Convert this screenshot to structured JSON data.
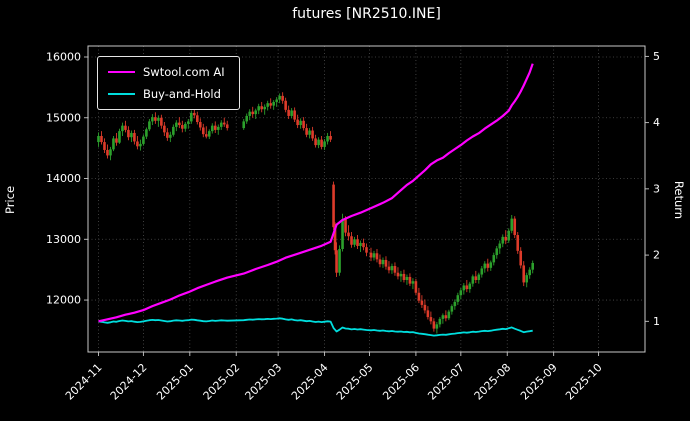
{
  "chart_data": {
    "type": "candlestick",
    "title": "futures [NR2510.INE]",
    "x_axis": {
      "tick_labels": [
        "2024-11",
        "2024-12",
        "2025-01",
        "2025-02",
        "2025-03",
        "2025-04",
        "2025-05",
        "2025-06",
        "2025-07",
        "2025-08",
        "2025-09",
        "2025-10"
      ],
      "tick_days": [
        7,
        37,
        68,
        99,
        127,
        158,
        188,
        219,
        249,
        280,
        311,
        341
      ],
      "xlim": [
        0,
        372
      ]
    },
    "price_axis": {
      "label": "Price",
      "ticks": [
        12000,
        13000,
        14000,
        15000,
        16000
      ],
      "ylim": [
        11145,
        16181
      ]
    },
    "return_axis": {
      "label": "Return",
      "ticks": [
        1,
        2,
        3,
        4,
        5
      ],
      "price_intercept": 10560,
      "price_per_unit": 1090
    },
    "grid": "dotted",
    "legend_position": "upper-left",
    "colors": {
      "background": "#000000",
      "text": "#ffffff",
      "grid": "#4d4d4d",
      "spine": "#c8c8c8",
      "up": "#2ca02c",
      "down": "#dd3b2a",
      "ai_line": "#ff00ff",
      "bh_line": "#00dede"
    },
    "series": [
      {
        "name": "Swtool.com AI",
        "axis": "return",
        "points": [
          [
            7,
            1.0
          ],
          [
            13,
            1.03
          ],
          [
            19,
            1.06
          ],
          [
            25,
            1.1
          ],
          [
            31,
            1.13
          ],
          [
            37,
            1.17
          ],
          [
            43,
            1.23
          ],
          [
            49,
            1.28
          ],
          [
            55,
            1.33
          ],
          [
            61,
            1.39
          ],
          [
            67,
            1.44
          ],
          [
            73,
            1.5
          ],
          [
            79,
            1.55
          ],
          [
            85,
            1.6
          ],
          [
            93,
            1.66
          ],
          [
            104,
            1.72
          ],
          [
            112,
            1.79
          ],
          [
            120,
            1.85
          ],
          [
            126,
            1.9
          ],
          [
            132,
            1.96
          ],
          [
            140,
            2.02
          ],
          [
            148,
            2.08
          ],
          [
            156,
            2.14
          ],
          [
            162,
            2.2
          ],
          [
            164,
            2.33
          ],
          [
            166,
            2.46
          ],
          [
            170,
            2.53
          ],
          [
            176,
            2.59
          ],
          [
            182,
            2.64
          ],
          [
            189,
            2.71
          ],
          [
            197,
            2.79
          ],
          [
            203,
            2.86
          ],
          [
            209,
            2.98
          ],
          [
            213,
            3.06
          ],
          [
            217,
            3.12
          ],
          [
            221,
            3.2
          ],
          [
            225,
            3.28
          ],
          [
            229,
            3.37
          ],
          [
            233,
            3.43
          ],
          [
            237,
            3.47
          ],
          [
            241,
            3.54
          ],
          [
            245,
            3.6
          ],
          [
            249,
            3.66
          ],
          [
            253,
            3.73
          ],
          [
            257,
            3.79
          ],
          [
            261,
            3.84
          ],
          [
            265,
            3.91
          ],
          [
            269,
            3.97
          ],
          [
            273,
            4.03
          ],
          [
            277,
            4.1
          ],
          [
            281,
            4.18
          ],
          [
            283,
            4.26
          ],
          [
            285,
            4.32
          ],
          [
            287,
            4.39
          ],
          [
            289,
            4.47
          ],
          [
            291,
            4.56
          ],
          [
            293,
            4.66
          ],
          [
            295,
            4.76
          ],
          [
            297,
            4.89
          ]
        ]
      },
      {
        "name": "Buy-and-Hold",
        "axis": "return",
        "derived": "close / first_close of candles"
      }
    ],
    "candles": [
      [
        7,
        14600,
        14760,
        14520,
        14700
      ],
      [
        9,
        14700,
        14780,
        14560,
        14600
      ],
      [
        11,
        14600,
        14660,
        14420,
        14470
      ],
      [
        13,
        14470,
        14560,
        14330,
        14380
      ],
      [
        15,
        14380,
        14520,
        14300,
        14480
      ],
      [
        17,
        14480,
        14700,
        14450,
        14660
      ],
      [
        19,
        14660,
        14750,
        14540,
        14590
      ],
      [
        21,
        14590,
        14820,
        14570,
        14780
      ],
      [
        23,
        14780,
        14920,
        14700,
        14870
      ],
      [
        25,
        14870,
        14950,
        14760,
        14800
      ],
      [
        27,
        14800,
        14860,
        14630,
        14680
      ],
      [
        29,
        14680,
        14790,
        14600,
        14750
      ],
      [
        31,
        14750,
        14800,
        14560,
        14610
      ],
      [
        33,
        14610,
        14700,
        14480,
        14530
      ],
      [
        35,
        14530,
        14640,
        14460,
        14570
      ],
      [
        37,
        14570,
        14720,
        14540,
        14690
      ],
      [
        39,
        14690,
        14840,
        14650,
        14810
      ],
      [
        41,
        14810,
        14980,
        14780,
        14940
      ],
      [
        43,
        14940,
        15060,
        14880,
        15010
      ],
      [
        45,
        15010,
        15090,
        14900,
        14950
      ],
      [
        47,
        14950,
        15040,
        14850,
        15000
      ],
      [
        49,
        15000,
        15050,
        14820,
        14870
      ],
      [
        51,
        14870,
        14930,
        14700,
        14760
      ],
      [
        53,
        14760,
        14830,
        14620,
        14670
      ],
      [
        55,
        14670,
        14770,
        14600,
        14720
      ],
      [
        57,
        14720,
        14890,
        14690,
        14850
      ],
      [
        59,
        14850,
        14960,
        14780,
        14920
      ],
      [
        61,
        14920,
        15010,
        14830,
        14880
      ],
      [
        63,
        14880,
        14950,
        14760,
        14820
      ],
      [
        65,
        14820,
        14930,
        14770,
        14900
      ],
      [
        67,
        14900,
        14980,
        14820,
        14940
      ],
      [
        69,
        14940,
        15120,
        14900,
        15080
      ],
      [
        71,
        15080,
        15160,
        14990,
        15040
      ],
      [
        73,
        15040,
        15100,
        14890,
        14930
      ],
      [
        75,
        14930,
        14990,
        14790,
        14840
      ],
      [
        77,
        14840,
        14900,
        14680,
        14730
      ],
      [
        79,
        14730,
        14860,
        14660,
        14690
      ],
      [
        81,
        14690,
        14810,
        14650,
        14780
      ],
      [
        83,
        14780,
        14910,
        14740,
        14870
      ],
      [
        85,
        14870,
        14940,
        14750,
        14800
      ],
      [
        87,
        14800,
        14890,
        14720,
        14850
      ],
      [
        89,
        14850,
        14960,
        14800,
        14920
      ],
      [
        91,
        14920,
        15000,
        14850,
        14890
      ],
      [
        93,
        14890,
        14950,
        14790,
        14830
      ],
      [
        104,
        14830,
        14980,
        14800,
        14940
      ],
      [
        106,
        14940,
        15070,
        14900,
        15030
      ],
      [
        108,
        15030,
        15140,
        14960,
        15100
      ],
      [
        110,
        15100,
        15180,
        15000,
        15060
      ],
      [
        112,
        15060,
        15150,
        14980,
        15120
      ],
      [
        114,
        15120,
        15230,
        15060,
        15190
      ],
      [
        116,
        15190,
        15260,
        15090,
        15140
      ],
      [
        118,
        15140,
        15220,
        15050,
        15180
      ],
      [
        120,
        15180,
        15280,
        15120,
        15240
      ],
      [
        122,
        15240,
        15320,
        15150,
        15200
      ],
      [
        124,
        15200,
        15290,
        15130,
        15260
      ],
      [
        126,
        15260,
        15340,
        15180,
        15300
      ],
      [
        128,
        15300,
        15400,
        15240,
        15360
      ],
      [
        130,
        15360,
        15420,
        15230,
        15280
      ],
      [
        132,
        15280,
        15330,
        15090,
        15130
      ],
      [
        134,
        15130,
        15200,
        14980,
        15030
      ],
      [
        136,
        15030,
        15160,
        14990,
        15120
      ],
      [
        138,
        15120,
        15170,
        14930,
        14970
      ],
      [
        140,
        14970,
        15050,
        14830,
        14880
      ],
      [
        142,
        14880,
        14990,
        14820,
        14950
      ],
      [
        144,
        14950,
        15010,
        14790,
        14830
      ],
      [
        146,
        14830,
        14900,
        14680,
        14720
      ],
      [
        148,
        14720,
        14830,
        14660,
        14790
      ],
      [
        150,
        14790,
        14850,
        14620,
        14660
      ],
      [
        152,
        14660,
        14720,
        14510,
        14550
      ],
      [
        154,
        14550,
        14680,
        14500,
        14640
      ],
      [
        156,
        14640,
        14700,
        14480,
        14520
      ],
      [
        158,
        14520,
        14650,
        14470,
        14610
      ],
      [
        160,
        14610,
        14750,
        14560,
        14700
      ],
      [
        162,
        14700,
        14780,
        14600,
        14640
      ],
      [
        164,
        13900,
        13950,
        13150,
        13200
      ],
      [
        165,
        13200,
        13280,
        12750,
        12820
      ],
      [
        166,
        12820,
        12950,
        12380,
        12450
      ],
      [
        168,
        12450,
        12900,
        12400,
        12840
      ],
      [
        170,
        12840,
        13420,
        12800,
        13330
      ],
      [
        172,
        13330,
        13380,
        13050,
        13110
      ],
      [
        174,
        13110,
        13230,
        12980,
        13050
      ],
      [
        176,
        13050,
        13120,
        12860,
        12910
      ],
      [
        178,
        12910,
        13040,
        12870,
        13000
      ],
      [
        180,
        13000,
        13070,
        12840,
        12890
      ],
      [
        182,
        12890,
        12980,
        12790,
        12940
      ],
      [
        184,
        12940,
        13010,
        12820,
        12870
      ],
      [
        186,
        12870,
        12930,
        12720,
        12780
      ],
      [
        189,
        12780,
        12860,
        12640,
        12700
      ],
      [
        191,
        12700,
        12810,
        12650,
        12770
      ],
      [
        193,
        12770,
        12840,
        12620,
        12670
      ],
      [
        195,
        12670,
        12750,
        12540,
        12590
      ],
      [
        197,
        12590,
        12700,
        12530,
        12660
      ],
      [
        199,
        12660,
        12720,
        12500,
        12550
      ],
      [
        201,
        12550,
        12640,
        12440,
        12490
      ],
      [
        203,
        12490,
        12600,
        12430,
        12560
      ],
      [
        205,
        12560,
        12620,
        12400,
        12450
      ],
      [
        207,
        12450,
        12540,
        12340,
        12390
      ],
      [
        209,
        12390,
        12480,
        12300,
        12430
      ],
      [
        211,
        12430,
        12500,
        12290,
        12330
      ],
      [
        213,
        12330,
        12420,
        12250,
        12380
      ],
      [
        215,
        12380,
        12440,
        12230,
        12270
      ],
      [
        217,
        12270,
        12360,
        12180,
        12310
      ],
      [
        219,
        12310,
        12350,
        12080,
        12120
      ],
      [
        221,
        12120,
        12200,
        11950,
        11990
      ],
      [
        223,
        11990,
        12080,
        11870,
        11920
      ],
      [
        225,
        11920,
        12010,
        11780,
        11830
      ],
      [
        227,
        11830,
        11900,
        11680,
        11720
      ],
      [
        229,
        11720,
        11810,
        11600,
        11650
      ],
      [
        231,
        11650,
        11700,
        11480,
        11530
      ],
      [
        233,
        11530,
        11640,
        11450,
        11600
      ],
      [
        235,
        11600,
        11720,
        11550,
        11690
      ],
      [
        237,
        11690,
        11780,
        11610,
        11750
      ],
      [
        239,
        11750,
        11830,
        11650,
        11700
      ],
      [
        241,
        11700,
        11840,
        11670,
        11810
      ],
      [
        243,
        11810,
        11930,
        11760,
        11900
      ],
      [
        245,
        11900,
        12010,
        11840,
        11970
      ],
      [
        247,
        11970,
        12120,
        11920,
        12080
      ],
      [
        249,
        12080,
        12200,
        12010,
        12160
      ],
      [
        251,
        12160,
        12280,
        12090,
        12240
      ],
      [
        253,
        12240,
        12330,
        12130,
        12180
      ],
      [
        255,
        12180,
        12300,
        12120,
        12270
      ],
      [
        257,
        12270,
        12420,
        12220,
        12390
      ],
      [
        259,
        12390,
        12480,
        12280,
        12330
      ],
      [
        261,
        12330,
        12450,
        12270,
        12420
      ],
      [
        263,
        12420,
        12560,
        12370,
        12520
      ],
      [
        265,
        12520,
        12640,
        12450,
        12600
      ],
      [
        267,
        12600,
        12680,
        12470,
        12530
      ],
      [
        269,
        12530,
        12650,
        12480,
        12620
      ],
      [
        271,
        12620,
        12780,
        12570,
        12740
      ],
      [
        273,
        12740,
        12890,
        12680,
        12850
      ],
      [
        275,
        12850,
        12980,
        12760,
        12930
      ],
      [
        277,
        12930,
        13080,
        12870,
        13040
      ],
      [
        279,
        13040,
        13150,
        12920,
        12980
      ],
      [
        281,
        12980,
        13180,
        12940,
        13140
      ],
      [
        283,
        13140,
        13400,
        13100,
        13340
      ],
      [
        285,
        13340,
        13380,
        13020,
        13070
      ],
      [
        287,
        13070,
        13120,
        12760,
        12810
      ],
      [
        289,
        12810,
        12870,
        12520,
        12570
      ],
      [
        291,
        12570,
        12640,
        12230,
        12290
      ],
      [
        293,
        12290,
        12450,
        12210,
        12410
      ],
      [
        295,
        12410,
        12540,
        12350,
        12500
      ],
      [
        297,
        12500,
        12650,
        12440,
        12610
      ]
    ]
  }
}
